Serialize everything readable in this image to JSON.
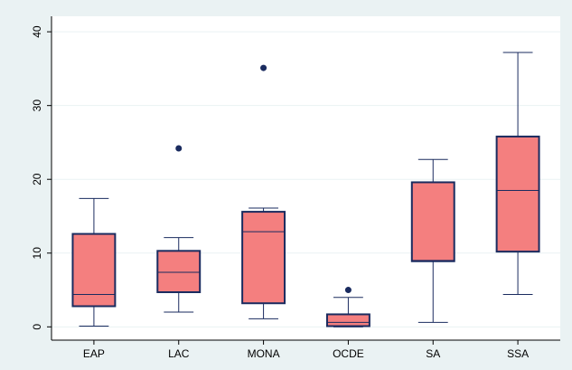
{
  "chart_data": {
    "type": "box",
    "categories": [
      "EAP",
      "LAC",
      "MONA",
      "OCDE",
      "SA",
      "SSA"
    ],
    "boxes": [
      {
        "min": 0.1,
        "q1": 2.8,
        "median": 4.4,
        "q3": 12.6,
        "max": 17.4,
        "outliers": []
      },
      {
        "min": 2.0,
        "q1": 4.7,
        "median": 7.4,
        "q3": 10.3,
        "max": 12.1,
        "outliers": [
          24.2
        ]
      },
      {
        "min": 1.1,
        "q1": 3.2,
        "median": 12.9,
        "q3": 15.6,
        "max": 16.1,
        "outliers": [
          35.1
        ]
      },
      {
        "min": 0,
        "q1": 0.1,
        "median": 0.6,
        "q3": 1.7,
        "max": 4.0,
        "outliers": [
          5.0
        ]
      },
      {
        "min": 0.6,
        "q1": 8.9,
        "median": 9.0,
        "q3": 19.6,
        "max": 22.7,
        "outliers": []
      },
      {
        "min": 4.4,
        "q1": 10.2,
        "median": 18.5,
        "q3": 25.8,
        "max": 37.2,
        "outliers": []
      }
    ],
    "color": "#f47f7f",
    "line_color": "#1a2b5f",
    "ylim": [
      -1.8,
      42.1
    ],
    "yticks": [
      0,
      10,
      20,
      30,
      40
    ],
    "grid": true
  }
}
